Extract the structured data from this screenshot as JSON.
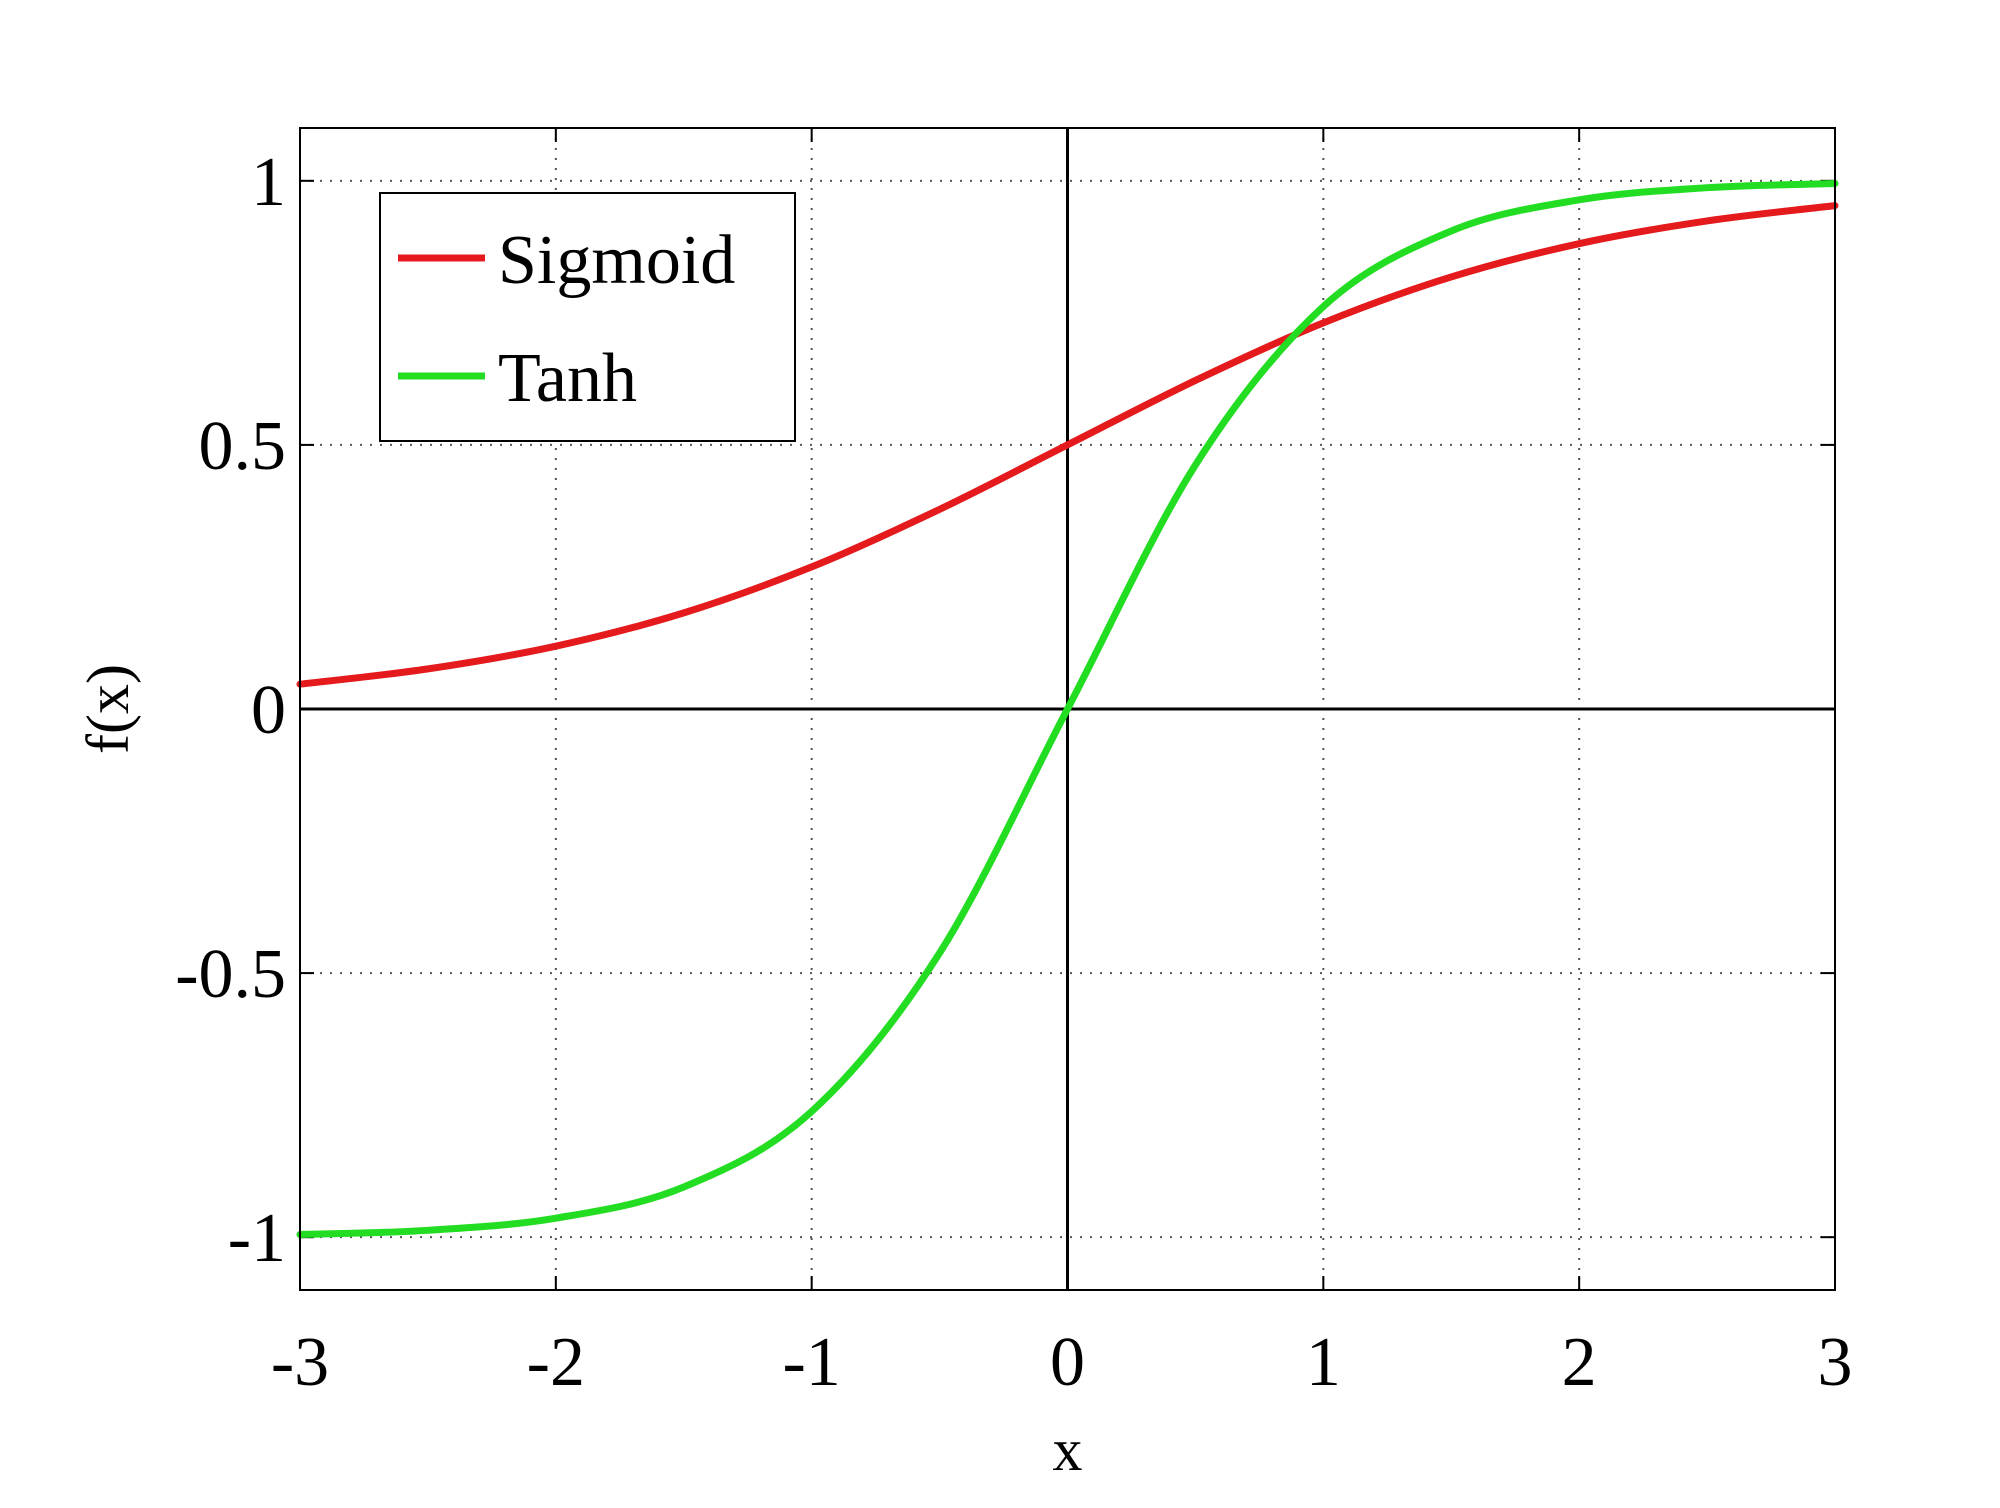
{
  "chart_data": {
    "type": "line",
    "title": "",
    "xlabel": "x",
    "ylabel": "f(x)",
    "xlim": [
      -3,
      3
    ],
    "ylim": [
      -1.1,
      1.1
    ],
    "x_ticks": [
      -3,
      -2,
      -1,
      0,
      1,
      2,
      3
    ],
    "x_tick_labels": [
      "-3",
      "-2",
      "-1",
      "0",
      "1",
      "2",
      "3"
    ],
    "y_ticks": [
      -1,
      -0.5,
      0,
      0.5,
      1
    ],
    "y_tick_labels": [
      "-1",
      "-0.5",
      "0",
      "0.5",
      "1"
    ],
    "grid": true,
    "grid_style": "dotted",
    "legend_position": "top-left",
    "x": [
      -3,
      -2.5,
      -2,
      -1.5,
      -1,
      -0.5,
      0,
      0.5,
      1,
      1.5,
      2,
      2.5,
      3
    ],
    "series": [
      {
        "name": "Sigmoid",
        "color": "#e41a1c",
        "values": [
          0.047,
          0.076,
          0.119,
          0.182,
          0.269,
          0.378,
          0.5,
          0.622,
          0.731,
          0.818,
          0.881,
          0.924,
          0.953
        ]
      },
      {
        "name": "Tanh",
        "color": "#22dd22",
        "values": [
          -0.995,
          -0.987,
          -0.964,
          -0.905,
          -0.762,
          -0.462,
          0,
          0.462,
          0.762,
          0.905,
          0.964,
          0.987,
          0.995
        ]
      }
    ]
  }
}
